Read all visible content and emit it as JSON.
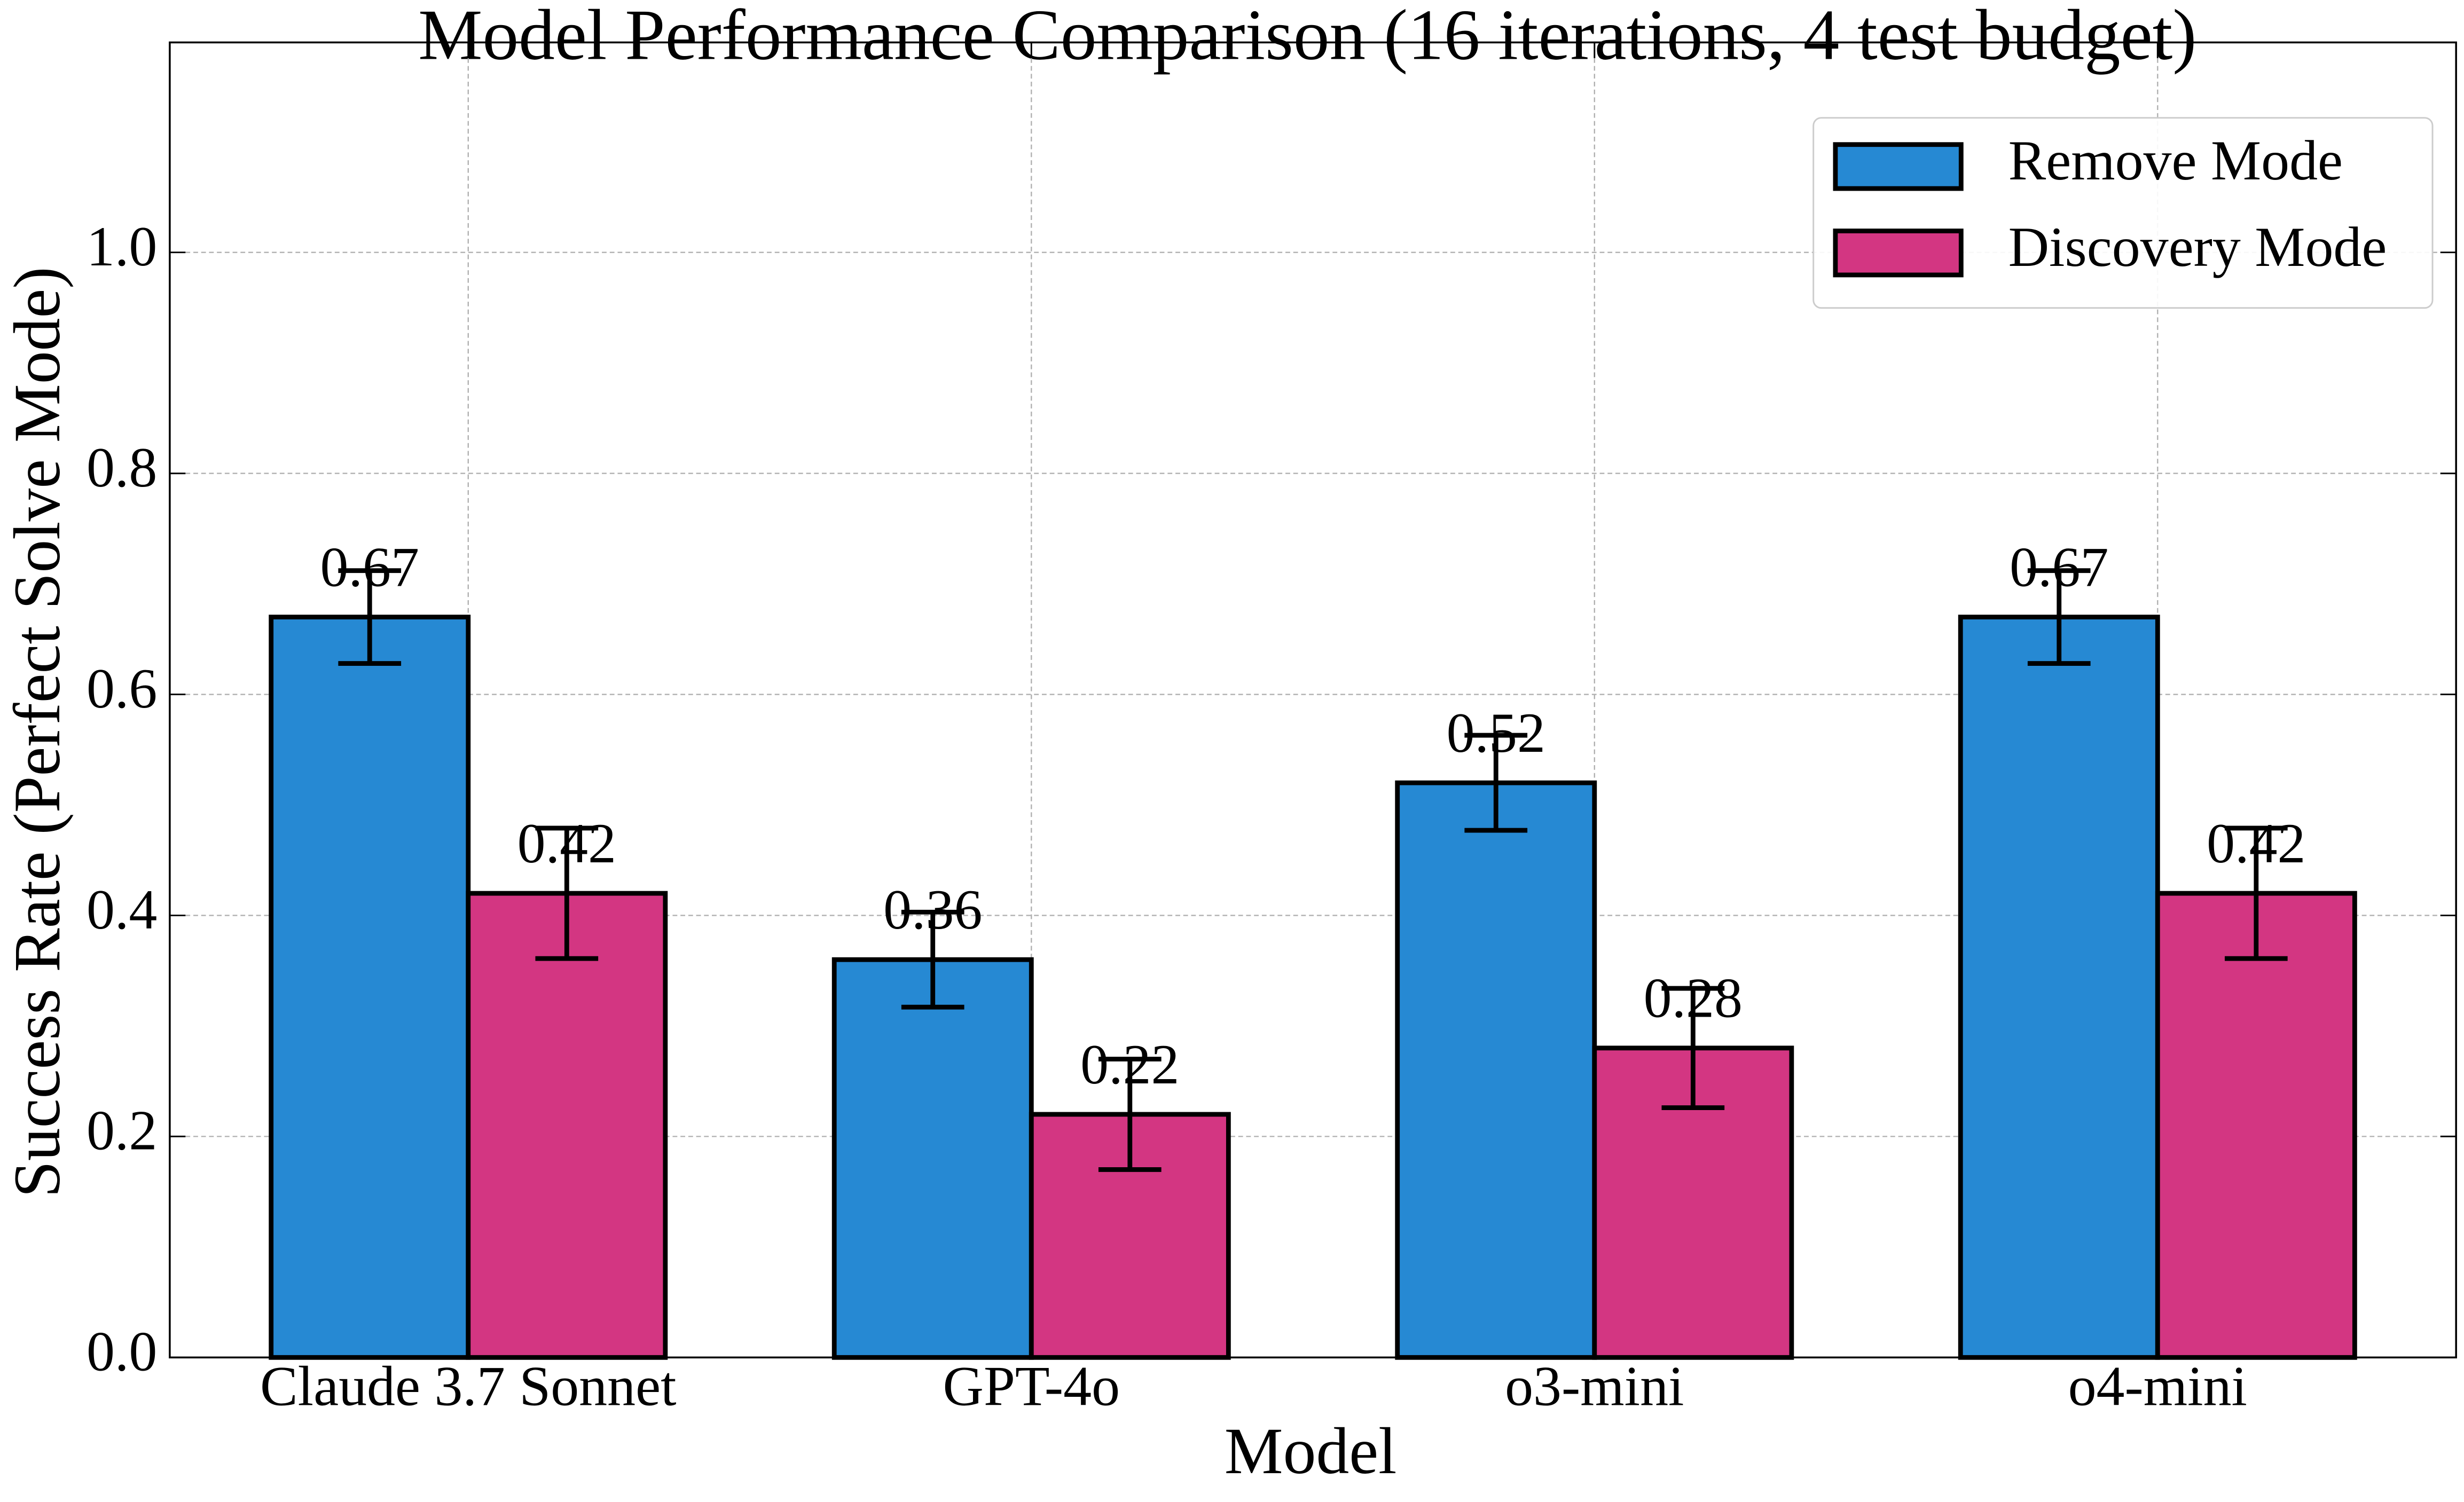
{
  "chart_data": {
    "type": "bar",
    "title": "Model Performance Comparison (16 iterations, 4 test budget)",
    "x_label": "Model",
    "y_label": "Success Rate (Perfect Solve Mode)",
    "categories": [
      "Claude 3.7 Sonnet",
      "GPT-4o",
      "o3-mini",
      "o4-mini"
    ],
    "series": [
      {
        "name": "Remove Mode",
        "color": "#2689d3",
        "values": [
          0.67,
          0.36,
          0.52,
          0.67
        ],
        "errors": [
          0.042,
          0.043,
          0.043,
          0.042
        ]
      },
      {
        "name": "Discovery Mode",
        "color": "#d33682",
        "values": [
          0.42,
          0.22,
          0.28,
          0.42
        ],
        "errors": [
          0.059,
          0.05,
          0.054,
          0.059
        ]
      }
    ],
    "ylim": [
      0,
      1.19
    ],
    "yticks": [
      {
        "value": 0,
        "label": "0.0"
      },
      0.2,
      0.4,
      0.6,
      0.8,
      {
        "value": 1,
        "label": "1.0"
      }
    ],
    "grid": true,
    "legend": "upper right"
  }
}
